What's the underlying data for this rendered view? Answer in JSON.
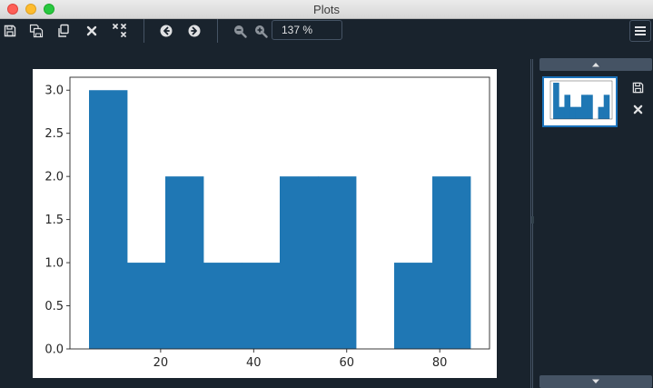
{
  "window": {
    "title": "Plots"
  },
  "toolbar": {
    "buttons": [
      {
        "name": "save-plot-button",
        "icon": "floppy-disk-icon"
      },
      {
        "name": "save-all-plots-button",
        "icon": "multi-save-icon"
      },
      {
        "name": "copy-plot-button",
        "icon": "copy-icon"
      },
      {
        "name": "remove-plot-button",
        "icon": "close-icon"
      },
      {
        "name": "remove-all-plots-button",
        "icon": "close-all-icon"
      },
      {
        "name": "previous-plot-button",
        "icon": "arrow-left-circle-icon"
      },
      {
        "name": "next-plot-button",
        "icon": "arrow-right-circle-icon"
      },
      {
        "name": "zoom-out-button",
        "icon": "zoom-out-icon"
      },
      {
        "name": "zoom-in-button",
        "icon": "zoom-in-icon"
      }
    ],
    "zoom_value": "137 %"
  },
  "colors": {
    "background": "#19232d",
    "bar": "#1f77b4",
    "border": "#455364",
    "accent": "#1a72bb"
  },
  "chart_data": {
    "type": "bar",
    "subtype": "histogram",
    "bins": [
      {
        "x0": 4.6,
        "x1": 12.8,
        "count": 3
      },
      {
        "x0": 12.8,
        "x1": 21.0,
        "count": 1
      },
      {
        "x0": 21.0,
        "x1": 29.2,
        "count": 2
      },
      {
        "x0": 29.2,
        "x1": 37.4,
        "count": 1
      },
      {
        "x0": 37.4,
        "x1": 45.6,
        "count": 1
      },
      {
        "x0": 45.6,
        "x1": 53.8,
        "count": 2
      },
      {
        "x0": 53.8,
        "x1": 62.0,
        "count": 2
      },
      {
        "x0": 62.0,
        "x1": 70.2,
        "count": 0
      },
      {
        "x0": 70.2,
        "x1": 78.4,
        "count": 1
      },
      {
        "x0": 78.4,
        "x1": 86.6,
        "count": 2
      }
    ],
    "xlim": [
      0.5,
      90.7
    ],
    "ylim": [
      0,
      3.15
    ],
    "xticks": [
      "20",
      "40",
      "60",
      "80"
    ],
    "xtick_values": [
      20,
      40,
      60,
      80
    ],
    "yticks": [
      "0.0",
      "0.5",
      "1.0",
      "1.5",
      "2.0",
      "2.5",
      "3.0"
    ],
    "ytick_values": [
      0,
      0.5,
      1.0,
      1.5,
      2.0,
      2.5,
      3.0
    ],
    "title": "",
    "xlabel": "",
    "ylabel": "",
    "grid": false,
    "legend": "none"
  }
}
